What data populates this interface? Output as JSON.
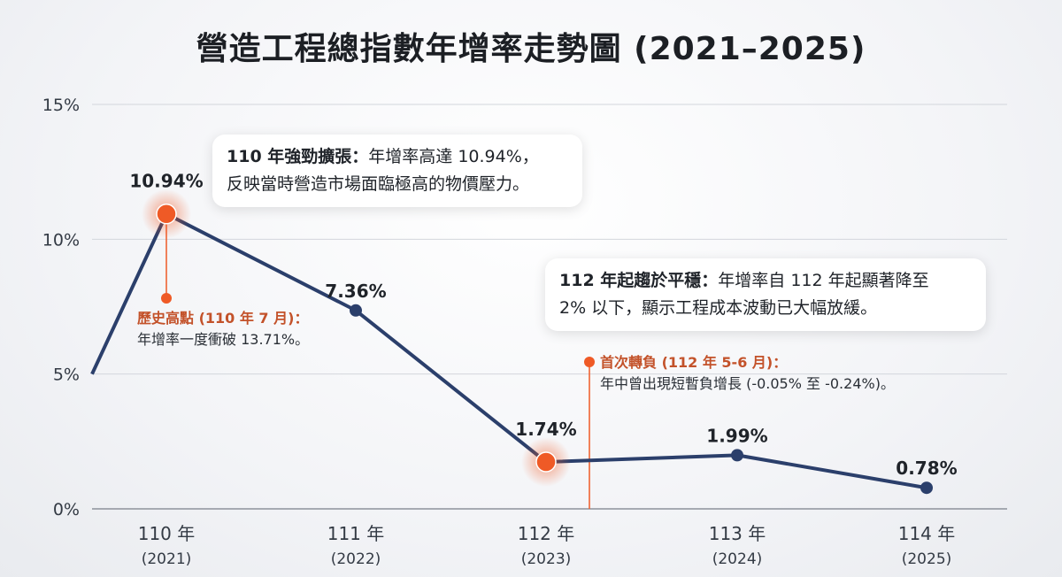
{
  "title": "營造工程總指數年增率走勢圖 (2021–2025)",
  "colors": {
    "line": "#2b3f6b",
    "highlight": "#ef5a26",
    "note": "#c3522a",
    "grid": "#d3d6dc"
  },
  "chart_data": {
    "type": "line",
    "title": "營造工程總指數年增率走勢圖 (2021–2025)",
    "categories": [
      "110 年",
      "111 年",
      "112 年",
      "113 年",
      "114 年"
    ],
    "category_sub": [
      "(2021)",
      "(2022)",
      "(2023)",
      "(2024)",
      "(2025)"
    ],
    "series": [
      {
        "name": "年增率",
        "start_value": 5.0,
        "values": [
          10.94,
          7.36,
          1.74,
          1.99,
          0.78
        ]
      }
    ],
    "data_labels": [
      "10.94%",
      "7.36%",
      "1.74%",
      "1.99%",
      "0.78%"
    ],
    "highlighted_points": [
      0,
      2
    ],
    "ylim": [
      0,
      15
    ],
    "yticks": [
      0,
      5,
      10,
      15
    ],
    "ytick_labels": [
      "0%",
      "5%",
      "10%",
      "15%"
    ],
    "grid": true
  },
  "callouts": {
    "c1": {
      "title": "110 年強勁擴張：",
      "text": "年增率高達 10.94%，",
      "text2": "反映當時營造市場面臨極高的物價壓力。"
    },
    "c2": {
      "title": "112 年起趨於平穩：",
      "text": "年增率自 112 年起顯著降至",
      "text2": "2% 以下，顯示工程成本波動已大幅放緩。"
    }
  },
  "notes": {
    "n1": {
      "title": "歷史高點 (110 年 7 月)：",
      "text": "年增率一度衝破 13.71%。"
    },
    "n2": {
      "title": "首次轉負 (112 年 5-6 月)：",
      "text": "年中曾出現短暫負增長 (-0.05% 至 -0.24%)。"
    }
  }
}
